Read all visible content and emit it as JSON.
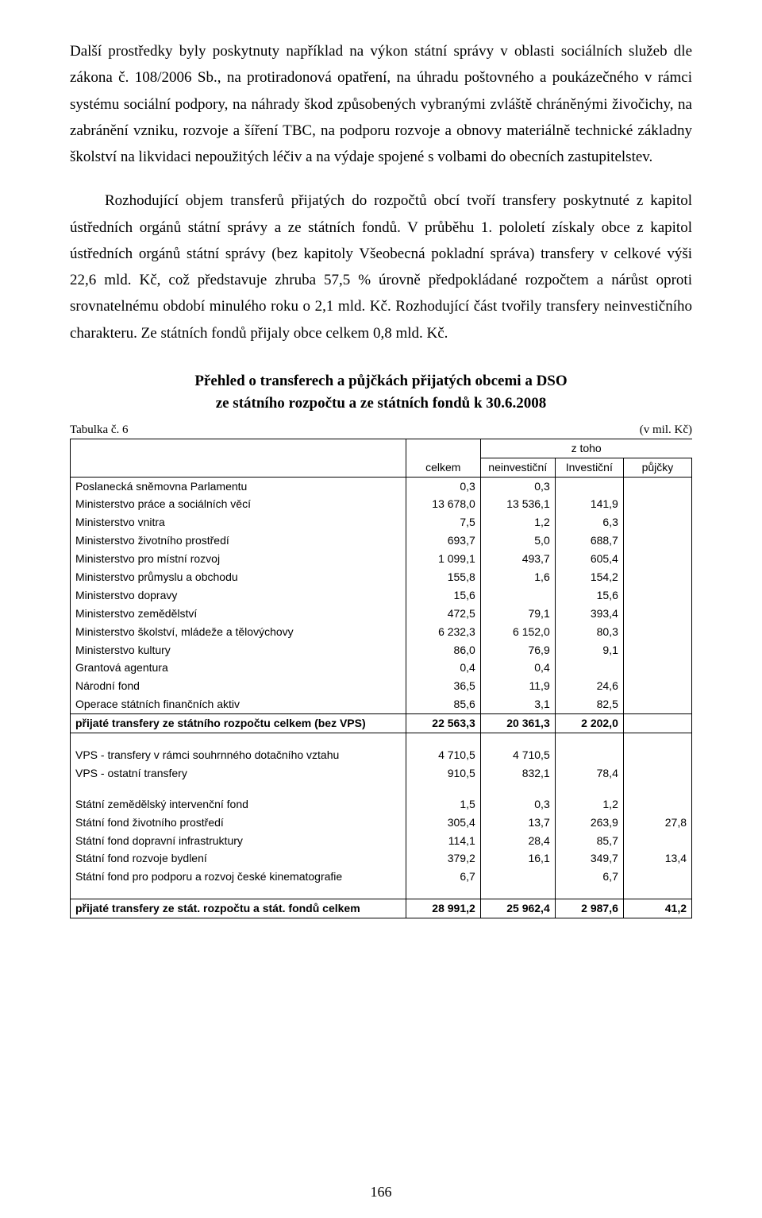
{
  "paragraphs": {
    "p1": "Další prostředky byly poskytnuty například na výkon státní správy v oblasti sociálních služeb dle zákona č. 108/2006 Sb., na protiradonová opatření, na úhradu poštovného a poukázečného v rámci systému sociální podpory, na náhrady škod způsobených vybranými zvláště chráněnými živočichy, na zabránění vzniku, rozvoje a šíření TBC, na podporu rozvoje a obnovy materiálně technické základny školství na likvidaci nepoužitých léčiv a na výdaje spojené s volbami do obecních zastupitelstev.",
    "p2": "Rozhodující objem transferů přijatých do rozpočtů obcí tvoří transfery poskytnuté z kapitol ústředních orgánů státní správy a ze státních fondů. V průběhu 1. pololetí získaly obce z kapitol ústředních orgánů státní správy (bez kapitoly Všeobecná pokladní správa) transfery v celkové výši 22,6 mld. Kč, což představuje zhruba 57,5 % úrovně předpokládané rozpočtem a nárůst oproti srovnatelnému období minulého roku o 2,1 mld. Kč. Rozhodující část tvořily transfery neinvestičního charakteru. Ze státních fondů přijaly obce celkem 0,8 mld. Kč."
  },
  "table_title": {
    "line1": "Přehled o transferech a půjčkách přijatých obcemi a DSO",
    "line2": "ze státního rozpočtu a ze státních fondů k 30.6.2008"
  },
  "table_meta": {
    "left": "Tabulka č. 6",
    "right": "(v mil. Kč)"
  },
  "header": {
    "celkem": "celkem",
    "ztoho": "z toho",
    "neinv": "neinvestiční",
    "inv": "Investiční",
    "pujcky": "půjčky"
  },
  "rows": [
    {
      "label": "Poslanecká sněmovna Parlamentu",
      "celkem": "0,3",
      "neinv": "0,3",
      "inv": "",
      "pujcky": ""
    },
    {
      "label": "Ministerstvo práce a sociálních věcí",
      "celkem": "13 678,0",
      "neinv": "13 536,1",
      "inv": "141,9",
      "pujcky": ""
    },
    {
      "label": "Ministerstvo vnitra",
      "celkem": "7,5",
      "neinv": "1,2",
      "inv": "6,3",
      "pujcky": ""
    },
    {
      "label": "Ministerstvo životního prostředí",
      "celkem": "693,7",
      "neinv": "5,0",
      "inv": "688,7",
      "pujcky": ""
    },
    {
      "label": "Ministerstvo pro místní rozvoj",
      "celkem": "1 099,1",
      "neinv": "493,7",
      "inv": "605,4",
      "pujcky": ""
    },
    {
      "label": "Ministerstvo průmyslu a obchodu",
      "celkem": "155,8",
      "neinv": "1,6",
      "inv": "154,2",
      "pujcky": ""
    },
    {
      "label": "Ministerstvo dopravy",
      "celkem": "15,6",
      "neinv": "",
      "inv": "15,6",
      "pujcky": ""
    },
    {
      "label": "Ministerstvo zemědělství",
      "celkem": "472,5",
      "neinv": "79,1",
      "inv": "393,4",
      "pujcky": ""
    },
    {
      "label": "Ministerstvo školství, mládeže a tělovýchovy",
      "celkem": "6 232,3",
      "neinv": "6 152,0",
      "inv": "80,3",
      "pujcky": ""
    },
    {
      "label": "Ministerstvo kultury",
      "celkem": "86,0",
      "neinv": "76,9",
      "inv": "9,1",
      "pujcky": ""
    },
    {
      "label": "Grantová agentura",
      "celkem": "0,4",
      "neinv": "0,4",
      "inv": "",
      "pujcky": ""
    },
    {
      "label": "Národní fond",
      "celkem": "36,5",
      "neinv": "11,9",
      "inv": "24,6",
      "pujcky": ""
    },
    {
      "label": "Operace státních finančních aktiv",
      "celkem": "85,6",
      "neinv": "3,1",
      "inv": "82,5",
      "pujcky": ""
    }
  ],
  "subtotal1": {
    "label": "přijaté transfery ze státního rozpočtu celkem (bez VPS)",
    "celkem": "22 563,3",
    "neinv": "20 361,3",
    "inv": "2 202,0",
    "pujcky": ""
  },
  "vps": [
    {
      "label": "VPS - transfery v rámci souhrnného dotačního vztahu",
      "celkem": "4 710,5",
      "neinv": "4 710,5",
      "inv": "",
      "pujcky": ""
    },
    {
      "label": "VPS - ostatní  transfery",
      "celkem": "910,5",
      "neinv": "832,1",
      "inv": "78,4",
      "pujcky": ""
    }
  ],
  "funds": [
    {
      "label": "Státní zemědělský intervenční fond",
      "celkem": "1,5",
      "neinv": "0,3",
      "inv": "1,2",
      "pujcky": ""
    },
    {
      "label": "Státní fond životního prostředí",
      "celkem": "305,4",
      "neinv": "13,7",
      "inv": "263,9",
      "pujcky": "27,8"
    },
    {
      "label": "Státní fond dopravní infrastruktury",
      "celkem": "114,1",
      "neinv": "28,4",
      "inv": "85,7",
      "pujcky": ""
    },
    {
      "label": "Státní fond rozvoje bydlení",
      "celkem": "379,2",
      "neinv": "16,1",
      "inv": "349,7",
      "pujcky": "13,4"
    },
    {
      "label": "Státní fond pro podporu a rozvoj české kinematografie",
      "celkem": "6,7",
      "neinv": "",
      "inv": "6,7",
      "pujcky": ""
    }
  ],
  "grandtotal": {
    "label": "přijaté transfery ze stát. rozpočtu a stát. fondů celkem",
    "celkem": "28 991,2",
    "neinv": "25 962,4",
    "inv": "2 987,6",
    "pujcky": "41,2"
  },
  "page_number": "166"
}
